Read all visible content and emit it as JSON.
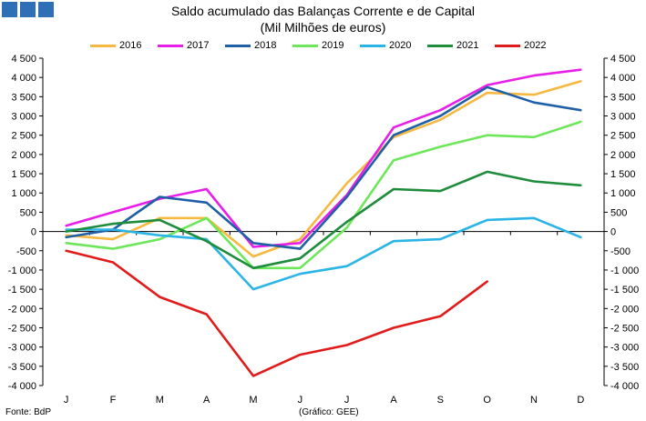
{
  "header": {
    "title": "Saldo acumulado das Balanças Corrente e de Capital",
    "subtitle": "(Mil Milhões de euros)"
  },
  "footer": {
    "source": "Fonte: BdP",
    "credit": "(Gráfico: GEE)"
  },
  "logo": {
    "color": "#2e6fb5"
  },
  "chart_data": {
    "type": "line",
    "title": "Saldo acumulado das Balanças Corrente e de Capital",
    "subtitle": "(Mil Milhões de euros)",
    "categories": [
      "J",
      "F",
      "M",
      "A",
      "M",
      "J",
      "J",
      "A",
      "S",
      "O",
      "N",
      "D"
    ],
    "ylim": [
      -4000,
      4500
    ],
    "yticks": [
      4500,
      4000,
      3500,
      3000,
      2500,
      2000,
      1500,
      1000,
      500,
      0,
      -500,
      -1000,
      -1500,
      -2000,
      -2500,
      -3000,
      -3500,
      -4000
    ],
    "ytick_labels": [
      "4 500",
      "4 000",
      "3 500",
      "3 000",
      "2 500",
      "2 000",
      "1 500",
      "1 000",
      "500",
      "0",
      "-500",
      "-1 000",
      "-1 500",
      "-2 000",
      "-2 500",
      "-3 000",
      "-3 500",
      "-4 000"
    ],
    "secondary_axis_mirrors_primary": true,
    "legend_position": "top",
    "grid": false,
    "series": [
      {
        "name": "2016",
        "color": "#f5b942",
        "values": [
          -100,
          -200,
          350,
          350,
          -650,
          -200,
          1250,
          2450,
          2900,
          3600,
          3550,
          3900
        ]
      },
      {
        "name": "2017",
        "color": "#e81fe8",
        "values": [
          150,
          500,
          850,
          1100,
          -400,
          -300,
          950,
          2700,
          3150,
          3800,
          4050,
          4200
        ]
      },
      {
        "name": "2018",
        "color": "#1f5fa6",
        "values": [
          -150,
          50,
          900,
          750,
          -300,
          -450,
          900,
          2500,
          3000,
          3750,
          3350,
          3150
        ]
      },
      {
        "name": "2019",
        "color": "#6ee65a",
        "values": [
          -300,
          -450,
          -200,
          350,
          -950,
          -950,
          100,
          1850,
          2200,
          2500,
          2450,
          2850
        ]
      },
      {
        "name": "2020",
        "color": "#2bb4e6",
        "values": [
          50,
          50,
          -100,
          -200,
          -1500,
          -1100,
          -900,
          -250,
          -200,
          300,
          350,
          -150
        ]
      },
      {
        "name": "2021",
        "color": "#1e8c3c",
        "values": [
          0,
          200,
          300,
          -250,
          -950,
          -700,
          250,
          1100,
          1050,
          1550,
          1300,
          1200
        ]
      },
      {
        "name": "2022",
        "color": "#e01b1b",
        "values": [
          -500,
          -800,
          -1700,
          -2150,
          -3750,
          -3200,
          -2950,
          -2500,
          -2200,
          -1300,
          null,
          null
        ]
      }
    ]
  }
}
